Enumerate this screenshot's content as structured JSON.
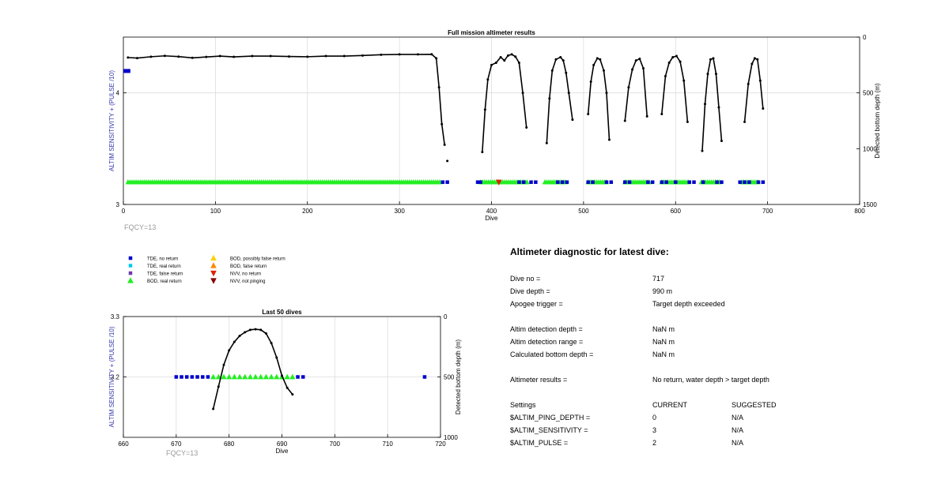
{
  "chart_data": [
    {
      "type": "scatter",
      "title": "Full mission altimeter results",
      "xlabel": "Dive",
      "ylabel": "ALTIM SENSITIVITY + (PULSE /10)",
      "ylabel_right": "Detected bottom depth (m)",
      "xlim": [
        0,
        800
      ],
      "ylim": [
        3,
        4.5
      ],
      "ylim_right": [
        1500,
        0
      ],
      "xticks": [
        "0",
        "100",
        "200",
        "300",
        "400",
        "500",
        "600",
        "700",
        "800"
      ],
      "yticks": [
        "3",
        "4"
      ],
      "yticks_right": [
        "0",
        "500",
        "1000",
        "1500"
      ],
      "annotation": "FQCY=13",
      "grid": true,
      "sensitivity_level": 3.2,
      "tde_no_return_initial": {
        "x": [
          0,
          5
        ],
        "y": 4.2
      },
      "tde_no_return_markers": [
        347,
        352,
        385,
        388,
        430,
        435,
        443,
        448,
        472,
        477,
        482,
        505,
        510,
        525,
        530,
        545,
        550,
        570,
        575,
        585,
        590,
        600,
        615,
        620,
        630,
        645,
        650,
        670,
        675,
        680,
        690,
        695
      ],
      "bod_real_return_segments": [
        [
          5,
          345
        ],
        [
          388,
          440
        ],
        [
          458,
          480
        ],
        [
          505,
          525
        ],
        [
          545,
          572
        ],
        [
          585,
          615
        ],
        [
          628,
          650
        ],
        [
          672,
          690
        ]
      ],
      "nvv_no_return": [
        408
      ],
      "bottom_depth_segments": [
        {
          "dives": [
            5,
            15,
            30,
            45,
            60,
            75,
            90,
            105,
            120,
            140,
            160,
            180,
            200,
            220,
            240,
            260,
            280,
            300,
            320,
            335,
            340,
            343,
            346,
            349
          ],
          "depth": [
            183,
            188,
            176,
            168,
            175,
            186,
            178,
            170,
            177,
            170,
            170,
            174,
            176,
            170,
            170,
            165,
            158,
            155,
            155,
            154,
            190,
            450,
            780,
            965
          ]
        },
        {
          "dives": [
            352
          ],
          "depth": [
            1110
          ]
        },
        {
          "dives": [
            390,
            393,
            396,
            400,
            405,
            410,
            414,
            418,
            422,
            426,
            430,
            434,
            438
          ],
          "depth": [
            1030,
            650,
            380,
            250,
            230,
            180,
            210,
            165,
            155,
            175,
            230,
            500,
            810
          ]
        },
        {
          "dives": [
            460,
            463,
            466,
            470,
            475,
            478,
            481,
            484,
            488
          ],
          "depth": [
            950,
            550,
            300,
            200,
            180,
            210,
            320,
            500,
            740
          ]
        },
        {
          "dives": [
            505,
            508,
            511,
            515,
            518,
            522,
            525,
            528
          ],
          "depth": [
            690,
            400,
            250,
            190,
            200,
            300,
            500,
            920
          ]
        },
        {
          "dives": [
            545,
            549,
            553,
            557,
            561,
            565,
            569
          ],
          "depth": [
            750,
            450,
            290,
            210,
            195,
            280,
            710
          ]
        },
        {
          "dives": [
            585,
            589,
            593,
            597,
            601,
            605,
            609,
            613
          ],
          "depth": [
            690,
            350,
            230,
            180,
            170,
            220,
            390,
            760
          ]
        },
        {
          "dives": [
            629,
            632,
            635,
            638,
            641,
            644,
            647,
            650
          ],
          "depth": [
            1020,
            600,
            330,
            200,
            190,
            330,
            630,
            930
          ]
        },
        {
          "dives": [
            675,
            679,
            683,
            686,
            689,
            692,
            695
          ],
          "depth": [
            760,
            420,
            240,
            190,
            200,
            390,
            640
          ]
        }
      ]
    },
    {
      "type": "scatter",
      "title": "Last 50 dives",
      "xlabel": "Dive",
      "ylabel": "ALTIM SENSITIVITY + (PULSE /10)",
      "ylabel_right": "Detected bottom depth (m)",
      "xlim": [
        660,
        720
      ],
      "ylim": [
        3.1,
        3.3
      ],
      "ylim_right": [
        1000,
        0
      ],
      "xticks": [
        "660",
        "670",
        "680",
        "690",
        "700",
        "710",
        "720"
      ],
      "yticks": [
        "3.2",
        "3.3"
      ],
      "yticks_right": [
        "0",
        "500",
        "1000"
      ],
      "annotation": "FQCY=13",
      "grid": true,
      "tde_no_return": {
        "x": [
          670,
          671,
          672,
          673,
          674,
          675,
          676,
          693,
          694,
          717
        ],
        "y": 3.2
      },
      "bod_real_return": {
        "x": [
          677,
          678,
          679,
          680,
          681,
          682,
          683,
          684,
          685,
          686,
          687,
          688,
          689,
          690,
          691,
          692
        ],
        "y": 3.2
      },
      "bottom_depth": {
        "dives": [
          677,
          678,
          679,
          680,
          681,
          682,
          683,
          684,
          685,
          686,
          687,
          688,
          689,
          690,
          691,
          692
        ],
        "depth": [
          765,
          580,
          400,
          280,
          210,
          160,
          130,
          110,
          105,
          110,
          140,
          220,
          340,
          490,
          590,
          645
        ]
      }
    }
  ],
  "legend": {
    "items": [
      {
        "label": "TDE, no return",
        "marker": "square",
        "color": "#0000cc"
      },
      {
        "label": "TDE, real return",
        "marker": "square",
        "color": "#00ccee"
      },
      {
        "label": "TDE, false return",
        "marker": "square",
        "color": "#6a3ab0"
      },
      {
        "label": "BOD, real return",
        "marker": "triangle-up",
        "color": "#22ee22"
      },
      {
        "label": "BOD, possibly false return",
        "marker": "triangle-up",
        "color": "#ffd000"
      },
      {
        "label": "BOD, false return",
        "marker": "triangle-up",
        "color": "#ff8800"
      },
      {
        "label": "NVV, no return",
        "marker": "triangle-down",
        "color": "#dd2200"
      },
      {
        "label": "NVV, not pinging",
        "marker": "triangle-down",
        "color": "#880000"
      }
    ]
  },
  "colors": {
    "axis_label": "#3333aa",
    "fqcy": "#999999",
    "grid": "#dddddd",
    "depth_line": "#000000"
  },
  "diagnostic": {
    "title": "Altimeter diagnostic for latest dive:",
    "rows": [
      {
        "label": "Dive no =",
        "value": "717"
      },
      {
        "label": "Dive depth =",
        "value": "990 m"
      },
      {
        "label": "Apogee trigger =",
        "value": "Target depth exceeded"
      },
      {
        "label": "Altim detection depth =",
        "value": "NaN m"
      },
      {
        "label": "Altim detection range =",
        "value": "NaN m"
      },
      {
        "label": "Calculated bottom depth =",
        "value": "NaN m"
      },
      {
        "label": "Altimeter results =",
        "value": "No return, water depth > target depth"
      }
    ],
    "settings": {
      "header": {
        "label": "Settings",
        "current": "CURRENT",
        "suggested": "SUGGESTED"
      },
      "rows": [
        {
          "label": "$ALTIM_PING_DEPTH =",
          "current": "0",
          "suggested": "N/A"
        },
        {
          "label": "$ALTIM_SENSITIVITY =",
          "current": "3",
          "suggested": "N/A"
        },
        {
          "label": "$ALTIM_PULSE =",
          "current": "2",
          "suggested": "N/A"
        }
      ]
    }
  }
}
